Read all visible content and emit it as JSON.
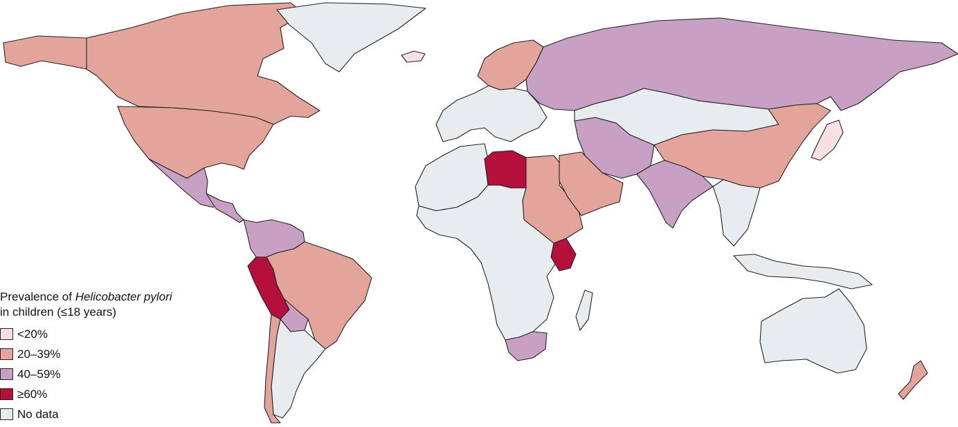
{
  "legend": {
    "title_prefix": "Prevalence of ",
    "title_italic": "Helicobacter pylori",
    "title_line2": "in children (≤18 years)",
    "items": [
      {
        "label": "<20%",
        "color": "#f7e0e3"
      },
      {
        "label": "20–39%",
        "color": "#e3a49c"
      },
      {
        "label": "40–59%",
        "color": "#c8a0c4"
      },
      {
        "label": "≥60%",
        "color": "#b5103c"
      },
      {
        "label": "No data",
        "color": "#e8ecef"
      }
    ]
  },
  "map": {
    "category_colors": {
      "lt20": "#f7e0e3",
      "c20_39": "#e3a49c",
      "c40_59": "#c8a0c4",
      "ge60": "#b5103c",
      "nodata": "#e8ecef"
    },
    "regions": [
      {
        "name": "canada",
        "category": "c20_39"
      },
      {
        "name": "usa",
        "category": "c20_39"
      },
      {
        "name": "alaska",
        "category": "c20_39"
      },
      {
        "name": "greenland",
        "category": "nodata"
      },
      {
        "name": "mexico",
        "category": "c40_59"
      },
      {
        "name": "central-america",
        "category": "c40_59"
      },
      {
        "name": "colombia-venezuela",
        "category": "c40_59"
      },
      {
        "name": "peru",
        "category": "ge60"
      },
      {
        "name": "brazil",
        "category": "c20_39"
      },
      {
        "name": "bolivia",
        "category": "c40_59"
      },
      {
        "name": "southern-cone",
        "category": "nodata"
      },
      {
        "name": "chile",
        "category": "c20_39"
      },
      {
        "name": "iceland",
        "category": "lt20"
      },
      {
        "name": "europe",
        "category": "nodata"
      },
      {
        "name": "scandinavia",
        "category": "c20_39"
      },
      {
        "name": "russia",
        "category": "c40_59"
      },
      {
        "name": "north-africa",
        "category": "nodata"
      },
      {
        "name": "libya",
        "category": "ge60"
      },
      {
        "name": "egypt-sudan",
        "category": "c20_39"
      },
      {
        "name": "west-central-africa",
        "category": "nodata"
      },
      {
        "name": "kenya",
        "category": "ge60"
      },
      {
        "name": "south-africa",
        "category": "c40_59"
      },
      {
        "name": "madagascar",
        "category": "nodata"
      },
      {
        "name": "arabia",
        "category": "c20_39"
      },
      {
        "name": "iran-region",
        "category": "c40_59"
      },
      {
        "name": "central-asia",
        "category": "nodata"
      },
      {
        "name": "india",
        "category": "c40_59"
      },
      {
        "name": "china",
        "category": "c20_39"
      },
      {
        "name": "southeast-asia",
        "category": "nodata"
      },
      {
        "name": "japan",
        "category": "lt20"
      },
      {
        "name": "australia",
        "category": "nodata"
      },
      {
        "name": "new-zealand",
        "category": "c20_39"
      },
      {
        "name": "indonesia",
        "category": "nodata"
      }
    ]
  }
}
